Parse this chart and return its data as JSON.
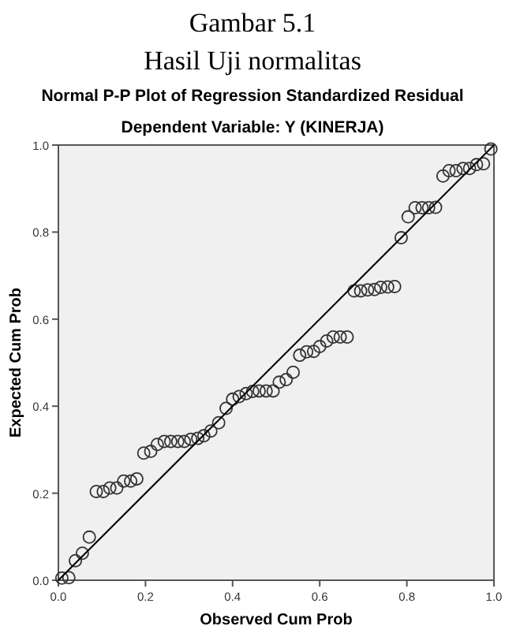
{
  "chart_data": {
    "type": "scatter",
    "title": "Normal P-P Plot of Regression Standardized Residual",
    "subtitle": "Dependent Variable: Y (KINERJA)",
    "annotations": [
      "Gambar  5.1",
      "Hasil Uji normalitas"
    ],
    "xlabel": "Observed Cum Prob",
    "ylabel": "Expected Cum Prob",
    "xlim": [
      0,
      1
    ],
    "ylim": [
      0,
      1
    ],
    "xticks": [
      {
        "value": 0,
        "label": "0.0"
      },
      0.2,
      0.4,
      0.6,
      0.8,
      {
        "value": 1,
        "label": "1.0"
      }
    ],
    "yticks": [
      {
        "value": 0,
        "label": "0.0"
      },
      0.2,
      0.4,
      0.6,
      0.8,
      {
        "value": 1,
        "label": "1.0"
      }
    ],
    "grid": false,
    "marker": "circle",
    "series": [
      {
        "color": "#333333",
        "x": [
          0.008,
          0.024,
          0.039,
          0.055,
          0.071,
          0.087,
          0.103,
          0.118,
          0.134,
          0.15,
          0.166,
          0.18,
          0.196,
          0.212,
          0.227,
          0.243,
          0.258,
          0.274,
          0.289,
          0.304,
          0.32,
          0.334,
          0.35,
          0.368,
          0.385,
          0.4,
          0.415,
          0.431,
          0.446,
          0.461,
          0.477,
          0.493,
          0.507,
          0.523,
          0.539,
          0.554,
          0.57,
          0.586,
          0.6,
          0.616,
          0.631,
          0.647,
          0.663,
          0.679,
          0.694,
          0.71,
          0.726,
          0.74,
          0.756,
          0.772,
          0.787,
          0.803,
          0.819,
          0.835,
          0.85,
          0.866,
          0.883,
          0.897,
          0.913,
          0.929,
          0.944,
          0.96,
          0.976,
          0.993
        ],
        "values": [
          0.005,
          0.006,
          0.045,
          0.062,
          0.099,
          0.204,
          0.204,
          0.212,
          0.212,
          0.228,
          0.228,
          0.233,
          0.292,
          0.296,
          0.312,
          0.319,
          0.319,
          0.319,
          0.319,
          0.324,
          0.326,
          0.332,
          0.343,
          0.362,
          0.395,
          0.416,
          0.422,
          0.429,
          0.434,
          0.435,
          0.435,
          0.435,
          0.455,
          0.461,
          0.478,
          0.517,
          0.525,
          0.526,
          0.537,
          0.55,
          0.559,
          0.559,
          0.559,
          0.665,
          0.665,
          0.667,
          0.668,
          0.673,
          0.674,
          0.675,
          0.787,
          0.835,
          0.856,
          0.856,
          0.856,
          0.857,
          0.929,
          0.941,
          0.941,
          0.946,
          0.946,
          0.955,
          0.957,
          0.991
        ]
      },
      {
        "type": "line",
        "color": "#000000",
        "x": [
          0,
          1
        ],
        "values": [
          0,
          1
        ],
        "marker": "none",
        "line_style": "solid"
      }
    ]
  }
}
